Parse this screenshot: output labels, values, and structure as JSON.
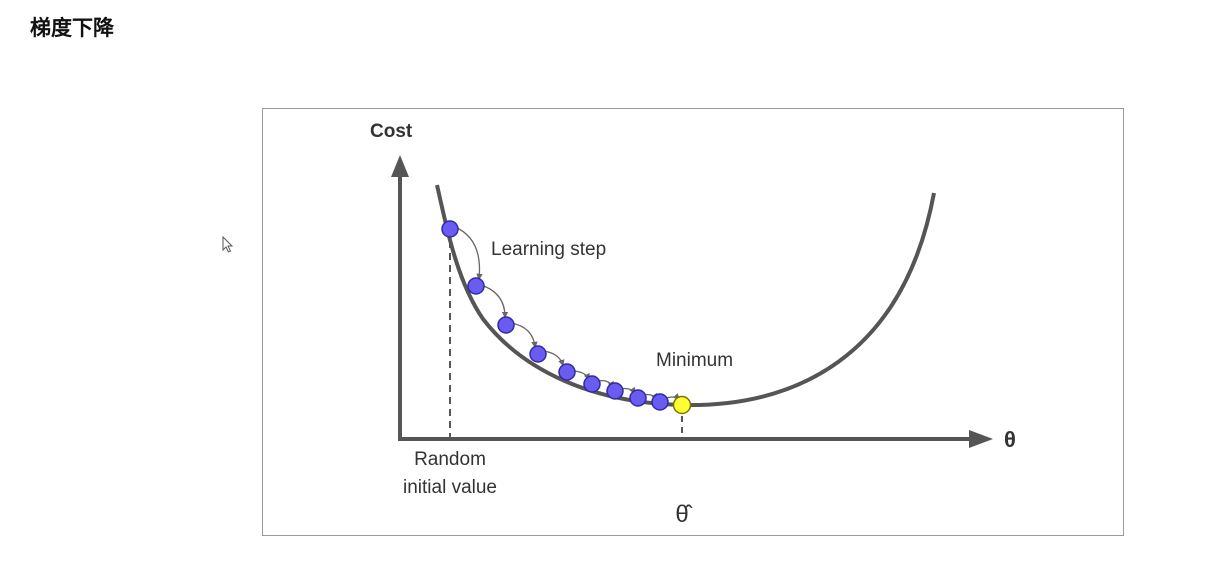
{
  "page": {
    "title": "梯度下降"
  },
  "diagram": {
    "y_axis_label": "Cost",
    "x_axis_label": "θ",
    "start_label_line1": "Random",
    "start_label_line2": "initial value",
    "step_label": "Learning step",
    "minimum_label": "Minimum",
    "optimum_label": "θ̂",
    "colors": {
      "curve": "#555555",
      "axis": "#555555",
      "step_point_fill": "#6a5cf0",
      "step_point_stroke": "#2f2aa8",
      "minimum_fill": "#ffff33",
      "minimum_stroke": "#777700",
      "text": "#333333"
    },
    "icons": {
      "cursor": "mouse-pointer-icon"
    }
  }
}
